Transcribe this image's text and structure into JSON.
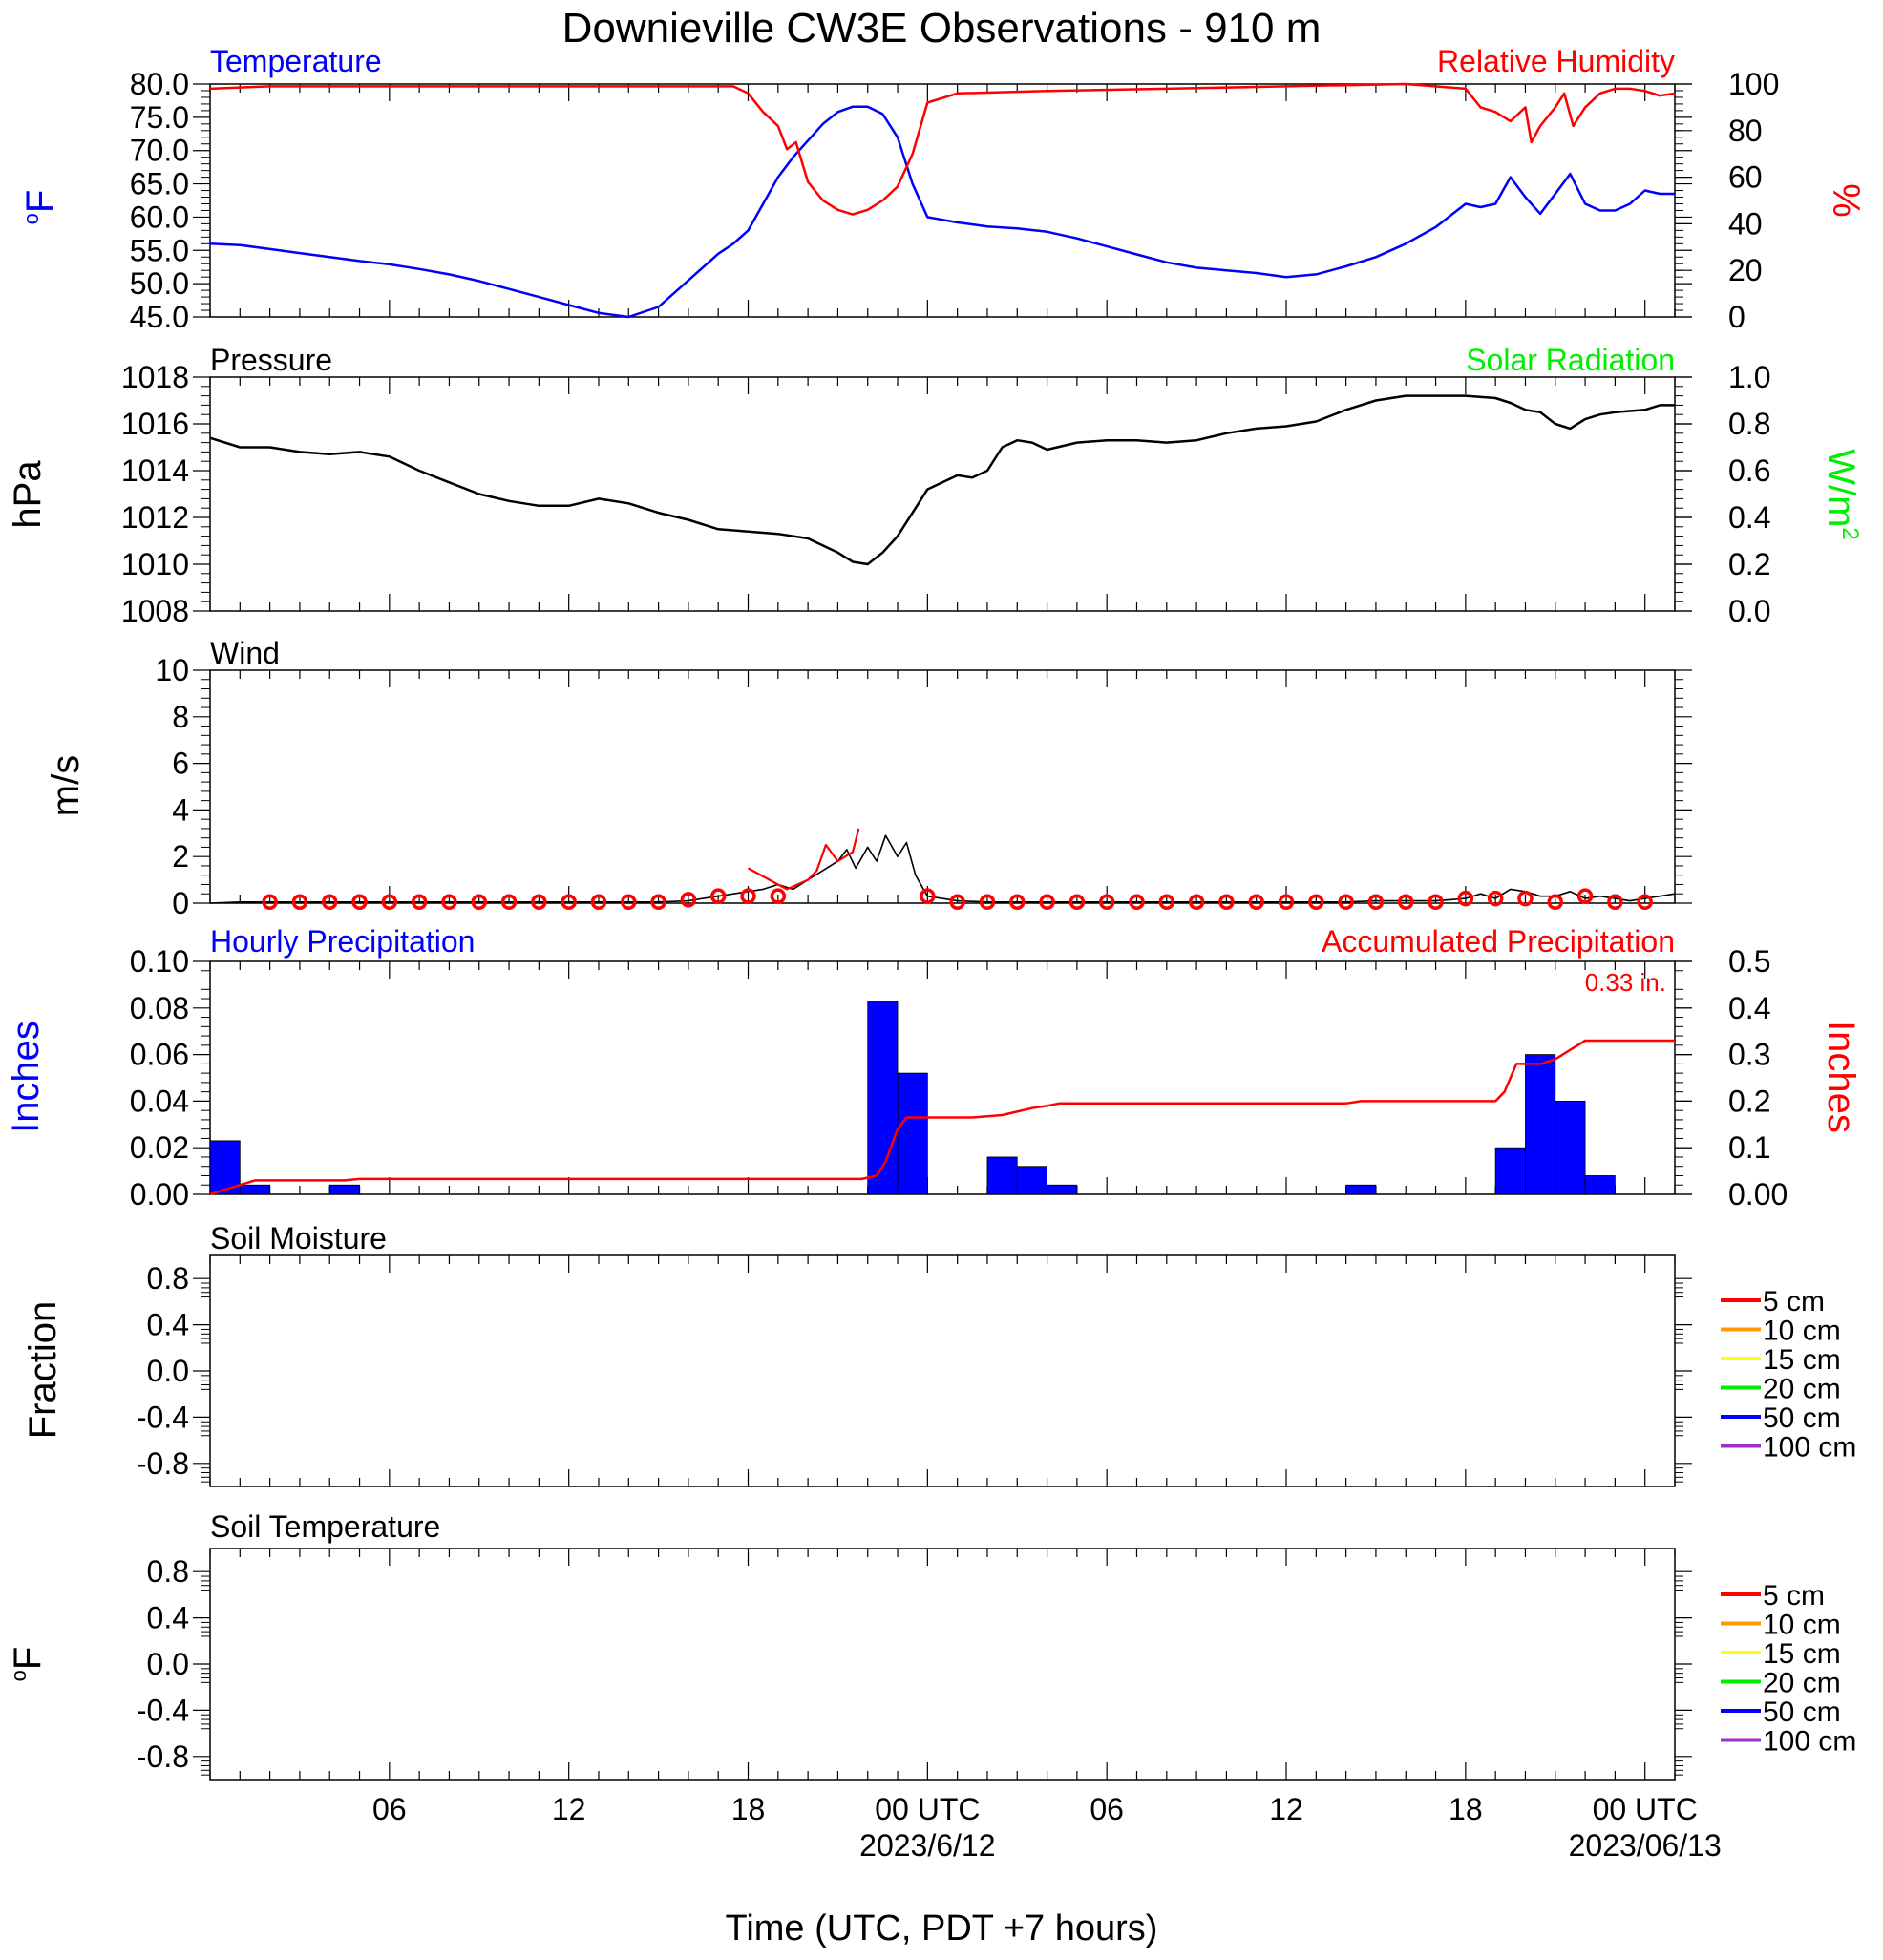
{
  "figure": {
    "title": "Downieville CW3E Observations - 910 m",
    "x_axis_label": "Time (UTC, PDT +7 hours)",
    "x_ticks": [
      "06",
      "12",
      "18",
      "00 UTC",
      "06",
      "12",
      "18",
      "00 UTC"
    ],
    "x_tick_hours": [
      6,
      12,
      18,
      24,
      30,
      36,
      42,
      48
    ],
    "x_dates": [
      {
        "hour": 24,
        "text": "2023/6/12"
      },
      {
        "hour": 48,
        "text": "2023/06/13"
      }
    ],
    "x_range_hours": [
      0,
      49
    ],
    "colors": {
      "temperature": "#0000ff",
      "humidity": "#ff0000",
      "solar": "#00ee00",
      "pressure": "#000000",
      "wind": "#000000",
      "wind_gust": "#ff0000",
      "hourly_precip": "#0000ff",
      "accum_precip": "#ff0000"
    }
  },
  "chart_data": [
    {
      "type": "line",
      "panel": "temperature_humidity",
      "left_title": "Temperature",
      "right_title": "Relative Humidity",
      "ylabel_left": "oF",
      "ylabel_right": "%",
      "y_ticks_left": [
        "80.0",
        "75.0",
        "70.0",
        "65.0",
        "60.0",
        "55.0",
        "50.0",
        "45.0"
      ],
      "y_ticks_right": [
        "100",
        "80",
        "60",
        "40",
        "20",
        "0"
      ],
      "ylim_left": [
        45,
        80
      ],
      "ylim_right": [
        0,
        100
      ],
      "series": [
        {
          "name": "Temperature",
          "axis": "left",
          "color": "#0000ff",
          "x": [
            0,
            1,
            2,
            3,
            4,
            5,
            6,
            7,
            8,
            9,
            10,
            11,
            12,
            13,
            14,
            15,
            16,
            17,
            17.5,
            18,
            18.5,
            19,
            19.5,
            20,
            20.5,
            21,
            21.5,
            22,
            22.5,
            23,
            23.5,
            24,
            25,
            26,
            27,
            28,
            29,
            30,
            31,
            32,
            33,
            34,
            35,
            36,
            37,
            38,
            39,
            40,
            41,
            42,
            42.5,
            43,
            43.5,
            44,
            44.5,
            45,
            45.5,
            46,
            46.5,
            47,
            47.5,
            48,
            48.5,
            49
          ],
          "y": [
            56.0,
            55.8,
            55.2,
            54.6,
            54.0,
            53.4,
            52.9,
            52.2,
            51.4,
            50.4,
            49.2,
            48.0,
            46.8,
            45.6,
            45.0,
            46.5,
            50.5,
            54.5,
            56.0,
            58.0,
            62.0,
            66.0,
            69.0,
            71.5,
            74.0,
            75.8,
            76.6,
            76.6,
            75.5,
            72.0,
            65.0,
            60.0,
            59.2,
            58.6,
            58.3,
            57.8,
            56.8,
            55.6,
            54.4,
            53.2,
            52.4,
            52.0,
            51.6,
            51.0,
            51.4,
            52.6,
            54.0,
            56.0,
            58.5,
            62.0,
            61.5,
            62.0,
            66.0,
            63.0,
            60.5,
            63.5,
            66.5,
            62.0,
            61.0,
            61.0,
            62.0,
            64.0,
            63.5,
            63.5
          ]
        },
        {
          "name": "Relative Humidity",
          "axis": "right",
          "color": "#ff0000",
          "x": [
            0,
            2,
            5,
            10,
            15,
            17,
            17.5,
            18,
            18.5,
            19,
            19.3,
            19.6,
            20,
            20.5,
            21,
            21.5,
            22,
            22.5,
            23,
            23.5,
            24,
            25,
            28,
            32,
            36,
            40,
            42,
            42.5,
            43,
            43.5,
            44,
            44.2,
            44.5,
            45,
            45.3,
            45.6,
            46,
            46.5,
            47,
            47.5,
            48,
            48.5,
            49
          ],
          "y": [
            98,
            99,
            99,
            99,
            99,
            99,
            99,
            96,
            88,
            82,
            72,
            75,
            58,
            50,
            46,
            44,
            46,
            50,
            56,
            70,
            92,
            96,
            97,
            98,
            99,
            100,
            98,
            90,
            88,
            84,
            90,
            75,
            82,
            90,
            96,
            82,
            90,
            96,
            98,
            98,
            97,
            95,
            96
          ]
        }
      ]
    },
    {
      "type": "line",
      "panel": "pressure_solar",
      "left_title": "Pressure",
      "right_title": "Solar Radiation",
      "ylabel_left": "hPa",
      "ylabel_right": "W/m2",
      "y_ticks_left": [
        "1018",
        "1016",
        "1014",
        "1012",
        "1010",
        "1008"
      ],
      "y_ticks_right": [
        "1.0",
        "0.8",
        "0.6",
        "0.4",
        "0.2",
        "0.0"
      ],
      "ylim_left": [
        1008,
        1018
      ],
      "ylim_right": [
        0.0,
        1.0
      ],
      "series": [
        {
          "name": "Pressure",
          "axis": "left",
          "color": "#000000",
          "x": [
            0,
            1,
            2,
            3,
            4,
            5,
            6,
            7,
            8,
            9,
            10,
            11,
            12,
            13,
            14,
            15,
            16,
            17,
            18,
            19,
            20,
            21,
            21.5,
            22,
            22.5,
            23,
            23.5,
            24,
            25,
            25.5,
            26,
            26.5,
            27,
            27.5,
            28,
            29,
            30,
            31,
            32,
            33,
            34,
            35,
            36,
            37,
            38,
            39,
            40,
            41,
            42,
            43,
            43.5,
            44,
            44.5,
            45,
            45.5,
            46,
            46.5,
            47,
            48,
            48.5,
            49
          ],
          "y": [
            1015.4,
            1015.0,
            1015.0,
            1014.8,
            1014.7,
            1014.8,
            1014.6,
            1014.0,
            1013.5,
            1013.0,
            1012.7,
            1012.5,
            1012.5,
            1012.8,
            1012.6,
            1012.2,
            1011.9,
            1011.5,
            1011.4,
            1011.3,
            1011.1,
            1010.5,
            1010.1,
            1010.0,
            1010.5,
            1011.2,
            1012.2,
            1013.2,
            1013.8,
            1013.7,
            1014.0,
            1015.0,
            1015.3,
            1015.2,
            1014.9,
            1015.2,
            1015.3,
            1015.3,
            1015.2,
            1015.3,
            1015.6,
            1015.8,
            1015.9,
            1016.1,
            1016.6,
            1017.0,
            1017.2,
            1017.2,
            1017.2,
            1017.1,
            1016.9,
            1016.6,
            1016.5,
            1016.0,
            1015.8,
            1016.2,
            1016.4,
            1016.5,
            1016.6,
            1016.8,
            1016.8
          ]
        }
      ]
    },
    {
      "type": "line",
      "panel": "wind",
      "left_title": "Wind",
      "ylabel_left": "m/s",
      "y_ticks_left": [
        "10",
        "8",
        "6",
        "4",
        "2",
        "0"
      ],
      "ylim_left": [
        0,
        10
      ],
      "series": [
        {
          "name": "Wind",
          "axis": "left",
          "color": "#000000",
          "x": [
            0,
            1,
            2,
            3,
            4,
            5,
            6,
            7,
            8,
            9,
            10,
            11,
            12,
            13,
            14,
            15,
            16,
            16.5,
            17,
            17.5,
            18,
            18.5,
            19,
            19.5,
            20,
            20.5,
            21,
            21.3,
            21.6,
            22,
            22.3,
            22.6,
            23,
            23.3,
            23.6,
            24,
            25,
            26,
            27,
            28,
            29,
            30,
            31,
            32,
            33,
            34,
            35,
            36,
            37,
            38,
            39,
            40,
            41,
            42,
            42.5,
            43,
            43.5,
            44,
            44.5,
            45,
            45.5,
            46,
            46.5,
            47,
            47.5,
            48,
            48.5,
            49
          ],
          "y": [
            0.0,
            0.05,
            0.05,
            0.05,
            0.05,
            0.05,
            0.05,
            0.05,
            0.05,
            0.05,
            0.05,
            0.05,
            0.05,
            0.05,
            0.05,
            0.05,
            0.1,
            0.2,
            0.3,
            0.4,
            0.5,
            0.6,
            0.8,
            0.6,
            1.0,
            1.4,
            1.8,
            2.3,
            1.5,
            2.4,
            1.8,
            2.9,
            2.0,
            2.6,
            1.2,
            0.3,
            0.1,
            0.05,
            0.05,
            0.05,
            0.05,
            0.05,
            0.05,
            0.05,
            0.05,
            0.05,
            0.05,
            0.05,
            0.05,
            0.05,
            0.1,
            0.1,
            0.1,
            0.2,
            0.4,
            0.2,
            0.6,
            0.5,
            0.3,
            0.3,
            0.5,
            0.2,
            0.3,
            0.2,
            0.1,
            0.2,
            0.3,
            0.4
          ]
        },
        {
          "name": "Hourly mean wind",
          "axis": "left",
          "color": "#ff0000",
          "marker": "circle",
          "x": [
            2,
            3,
            4,
            5,
            6,
            7,
            8,
            9,
            10,
            11,
            12,
            13,
            14,
            15,
            16,
            17,
            18,
            19,
            20,
            21,
            22,
            23,
            24,
            25,
            26,
            27,
            28,
            29,
            30,
            31,
            32,
            33,
            34,
            35,
            36,
            37,
            38,
            39,
            40,
            41,
            42,
            43,
            44,
            45,
            46,
            47,
            48
          ],
          "y": [
            0.05,
            0.05,
            0.05,
            0.05,
            0.05,
            0.05,
            0.05,
            0.05,
            0.05,
            0.05,
            0.05,
            0.05,
            0.05,
            0.05,
            0.15,
            0.3,
            0.3,
            0.3,
            null,
            null,
            null,
            null,
            0.3,
            0.05,
            0.05,
            0.05,
            0.05,
            0.05,
            0.05,
            0.05,
            0.05,
            0.05,
            0.05,
            0.05,
            0.05,
            0.05,
            0.05,
            0.05,
            0.05,
            0.05,
            0.2,
            0.2,
            0.2,
            0.05,
            0.3,
            0.05,
            0.05
          ]
        },
        {
          "name": "Hourly mean wind line",
          "axis": "left",
          "color": "#ff0000",
          "x": [
            18,
            19,
            19.3,
            20,
            20.3,
            20.6,
            21,
            21.5,
            21.7
          ],
          "y": [
            1.5,
            0.8,
            0.6,
            1.0,
            1.4,
            2.5,
            1.8,
            2.2,
            3.2
          ]
        }
      ]
    },
    {
      "type": "bar",
      "panel": "precipitation",
      "left_title": "Hourly Precipitation",
      "right_title": "Accumulated Precipitation",
      "annotation": "0.33 in.",
      "ylabel_left": "Inches",
      "ylabel_right": "Inches",
      "y_ticks_left": [
        "0.10",
        "0.08",
        "0.06",
        "0.04",
        "0.02",
        "0.00"
      ],
      "y_ticks_right": [
        "0.5",
        "0.4",
        "0.3",
        "0.2",
        "0.1",
        "0.00"
      ],
      "ylim_left": [
        0,
        0.1
      ],
      "ylim_right": [
        0,
        0.5
      ],
      "bars": {
        "name": "Hourly Precipitation",
        "color": "#0000ff",
        "x_start": [
          0,
          1,
          4,
          22,
          23,
          26,
          27,
          28,
          38,
          43,
          44,
          45,
          46
        ],
        "values": [
          0.023,
          0.004,
          0.004,
          0.083,
          0.052,
          0.016,
          0.012,
          0.004,
          0.004,
          0.02,
          0.06,
          0.04,
          0.008
        ]
      },
      "series": [
        {
          "name": "Accumulated Precipitation",
          "axis": "right",
          "color": "#ff0000",
          "x": [
            0,
            1,
            1.5,
            4.5,
            5,
            21.8,
            22.3,
            22.6,
            23.0,
            23.3,
            25.5,
            26.5,
            27.5,
            28.0,
            28.4,
            38.0,
            38.5,
            43.0,
            43.3,
            43.7,
            44.5,
            45.0,
            45.5,
            46.0,
            49.0
          ],
          "y": [
            0.0,
            0.02,
            0.03,
            0.03,
            0.033,
            0.033,
            0.04,
            0.07,
            0.14,
            0.165,
            0.165,
            0.17,
            0.185,
            0.19,
            0.195,
            0.195,
            0.2,
            0.2,
            0.22,
            0.28,
            0.28,
            0.29,
            0.31,
            0.33,
            0.33
          ]
        }
      ]
    },
    {
      "type": "line",
      "panel": "soil_moisture",
      "left_title": "Soil Moisture",
      "ylabel_left": "Fraction",
      "y_ticks_left": [
        "0.8",
        "0.4",
        "0.0",
        "-0.4",
        "-0.8"
      ],
      "ylim_left": [
        -1,
        1
      ],
      "legend": [
        "5 cm",
        "10 cm",
        "15 cm",
        "20 cm",
        "50 cm",
        "100 cm"
      ],
      "legend_colors": [
        "#ff0000",
        "#ff9900",
        "#ffff00",
        "#00ee00",
        "#0000ff",
        "#9933cc"
      ],
      "legend_position": "right",
      "series": []
    },
    {
      "type": "line",
      "panel": "soil_temperature",
      "left_title": "Soil Temperature",
      "ylabel_left": "oF",
      "y_ticks_left": [
        "0.8",
        "0.4",
        "0.0",
        "-0.4",
        "-0.8"
      ],
      "ylim_left": [
        -1,
        1
      ],
      "legend": [
        "5 cm",
        "10 cm",
        "15 cm",
        "20 cm",
        "50 cm",
        "100 cm"
      ],
      "legend_colors": [
        "#ff0000",
        "#ff9900",
        "#ffff00",
        "#00ee00",
        "#0000ff",
        "#9933cc"
      ],
      "legend_position": "right",
      "series": []
    }
  ]
}
